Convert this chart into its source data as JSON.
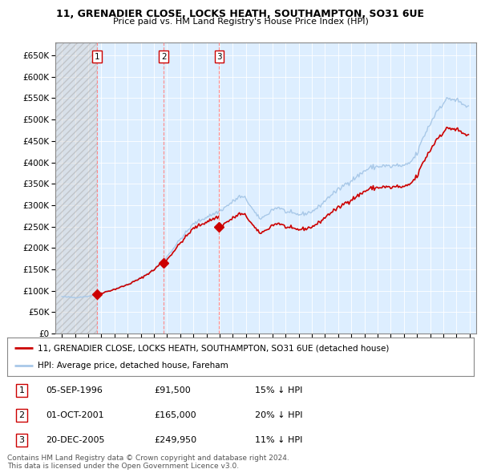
{
  "title_line1": "11, GRENADIER CLOSE, LOCKS HEATH, SOUTHAMPTON, SO31 6UE",
  "title_line2": "Price paid vs. HM Land Registry's House Price Index (HPI)",
  "xlim": [
    1993.5,
    2025.5
  ],
  "ylim": [
    0,
    680000
  ],
  "yticks": [
    0,
    50000,
    100000,
    150000,
    200000,
    250000,
    300000,
    350000,
    400000,
    450000,
    500000,
    550000,
    600000,
    650000
  ],
  "ytick_labels": [
    "£0",
    "£50K",
    "£100K",
    "£150K",
    "£200K",
    "£250K",
    "£300K",
    "£350K",
    "£400K",
    "£450K",
    "£500K",
    "£550K",
    "£600K",
    "£650K"
  ],
  "sale_dates": [
    1996.671,
    2001.748,
    2005.962
  ],
  "sale_prices": [
    91500,
    165000,
    249950
  ],
  "sale_labels": [
    "1",
    "2",
    "3"
  ],
  "hpi_color": "#a8c8e8",
  "price_color": "#cc0000",
  "dashed_line_color": "#ff8888",
  "bg_color": "#ddeeff",
  "legend_line1": "11, GRENADIER CLOSE, LOCKS HEATH, SOUTHAMPTON, SO31 6UE (detached house)",
  "legend_line2": "HPI: Average price, detached house, Fareham",
  "table_entries": [
    {
      "label": "1",
      "date": "05-SEP-1996",
      "price": "£91,500",
      "note": "15% ↓ HPI"
    },
    {
      "label": "2",
      "date": "01-OCT-2001",
      "price": "£165,000",
      "note": "20% ↓ HPI"
    },
    {
      "label": "3",
      "date": "20-DEC-2005",
      "price": "£249,950",
      "note": "11% ↓ HPI"
    }
  ],
  "footer": "Contains HM Land Registry data © Crown copyright and database right 2024.\nThis data is licensed under the Open Government Licence v3.0.",
  "hatch_color": "#c8c8c8"
}
